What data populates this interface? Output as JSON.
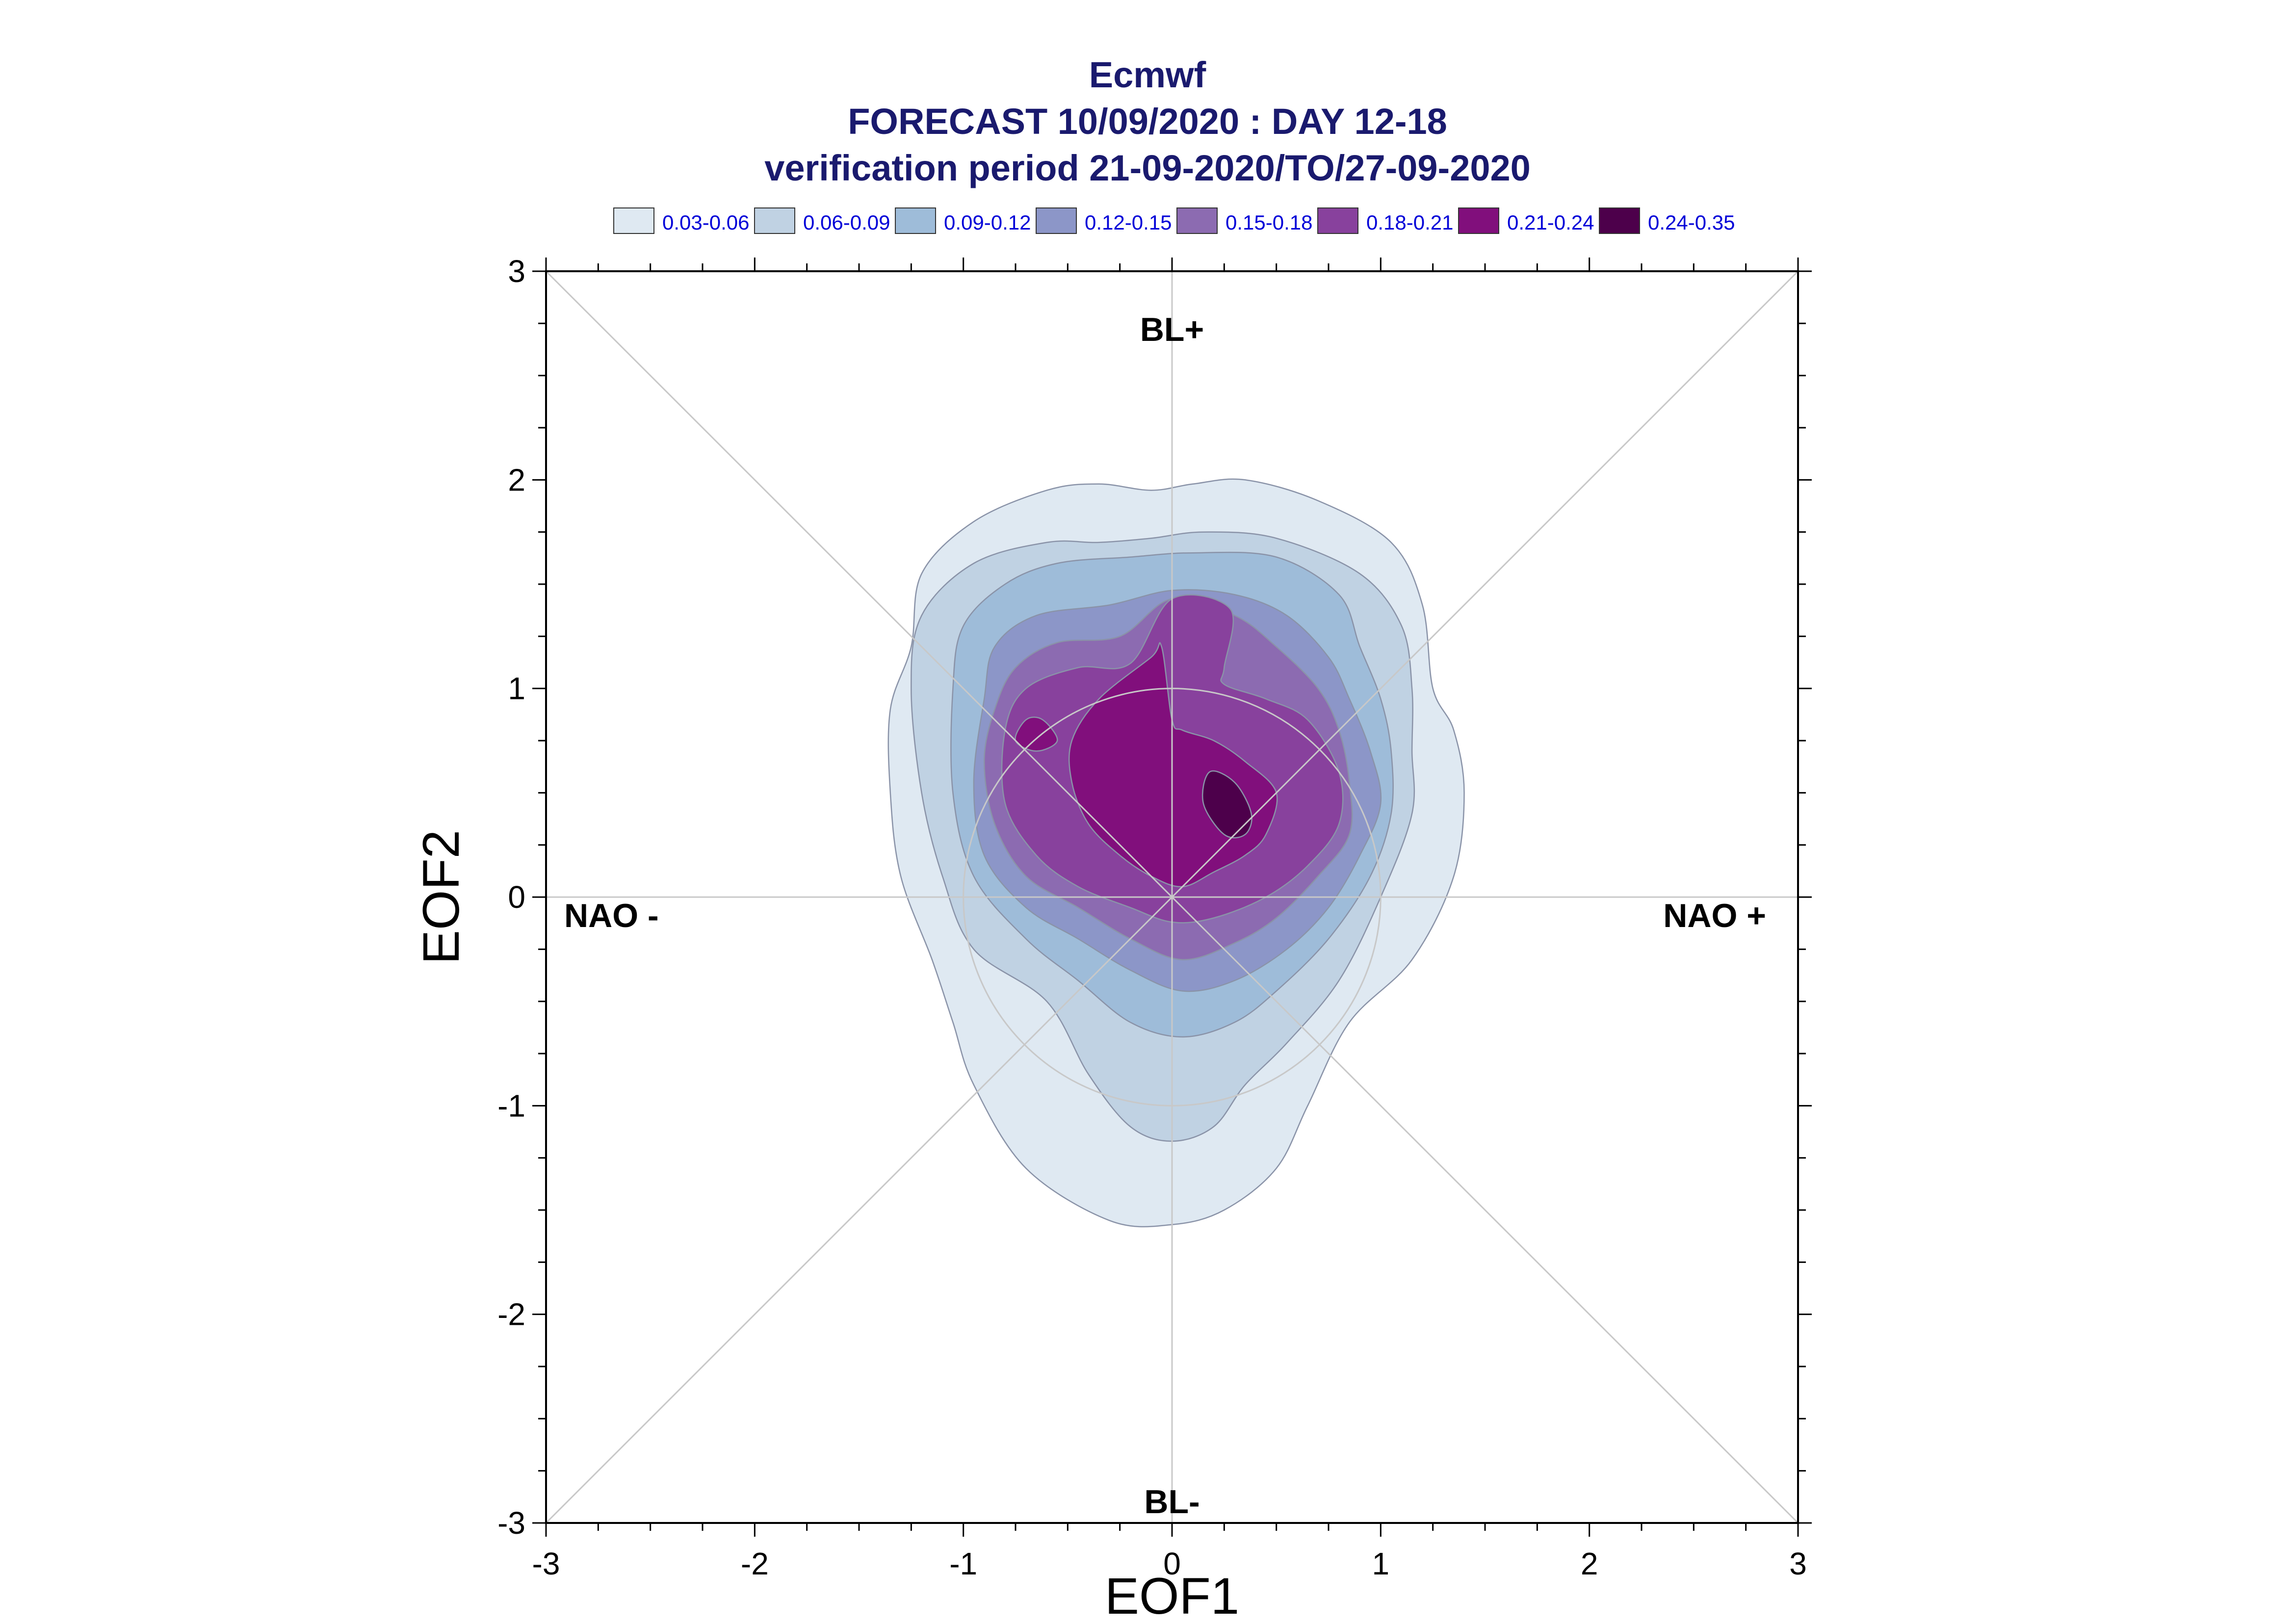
{
  "header": {
    "title": "Ecmwf",
    "subtitle": "FORECAST 10/09/2020 : DAY 12-18",
    "period": "verification period 21-09-2020/TO/27-09-2020"
  },
  "legend": [
    {
      "label": "0.03-0.06",
      "color": "#dfe9f2"
    },
    {
      "label": "0.06-0.09",
      "color": "#c0d2e3"
    },
    {
      "label": "0.09-0.12",
      "color": "#9ebcd9"
    },
    {
      "label": "0.12-0.15",
      "color": "#8c96c8"
    },
    {
      "label": "0.15-0.18",
      "color": "#8c6bb1"
    },
    {
      "label": "0.18-0.21",
      "color": "#88419d"
    },
    {
      "label": "0.21-0.24",
      "color": "#810f7c"
    },
    {
      "label": "0.24-0.35",
      "color": "#4d004b"
    }
  ],
  "chart_data": {
    "type": "contour",
    "xlabel": "EOF1",
    "ylabel": "EOF2",
    "xlim": [
      -3,
      3
    ],
    "ylim": [
      -3,
      3
    ],
    "xticks": [
      "-3",
      "-2",
      "-1",
      "0",
      "1",
      "2",
      "3"
    ],
    "yticks": [
      "3",
      "2",
      "1",
      "0",
      "-1",
      "-2",
      "-3"
    ],
    "regime_labels": {
      "top": "BL+",
      "bottom": "BL-",
      "left": "NAO -",
      "right": "NAO +"
    },
    "reference_circle_radius": 1,
    "levels": [
      {
        "range": "0.03-0.06",
        "points": [
          [
            -1.25,
            1.2
          ],
          [
            -1.2,
            1.55
          ],
          [
            -0.95,
            1.8
          ],
          [
            -0.6,
            1.95
          ],
          [
            -0.35,
            1.98
          ],
          [
            -0.1,
            1.95
          ],
          [
            0.1,
            1.98
          ],
          [
            0.35,
            2.0
          ],
          [
            0.7,
            1.9
          ],
          [
            1.05,
            1.7
          ],
          [
            1.2,
            1.4
          ],
          [
            1.25,
            1.0
          ],
          [
            1.35,
            0.8
          ],
          [
            1.4,
            0.5
          ],
          [
            1.35,
            0.1
          ],
          [
            1.15,
            -0.3
          ],
          [
            0.85,
            -0.6
          ],
          [
            0.65,
            -1.0
          ],
          [
            0.5,
            -1.3
          ],
          [
            0.25,
            -1.5
          ],
          [
            0.0,
            -1.57
          ],
          [
            -0.3,
            -1.55
          ],
          [
            -0.7,
            -1.3
          ],
          [
            -0.95,
            -0.9
          ],
          [
            -1.05,
            -0.6
          ],
          [
            -1.15,
            -0.3
          ],
          [
            -1.3,
            0.1
          ],
          [
            -1.35,
            0.5
          ],
          [
            -1.35,
            0.9
          ]
        ]
      },
      {
        "range": "0.06-0.09",
        "points": [
          [
            -1.25,
            1.0
          ],
          [
            -1.2,
            1.35
          ],
          [
            -0.95,
            1.6
          ],
          [
            -0.6,
            1.7
          ],
          [
            -0.35,
            1.7
          ],
          [
            -0.1,
            1.72
          ],
          [
            0.15,
            1.75
          ],
          [
            0.5,
            1.72
          ],
          [
            0.9,
            1.55
          ],
          [
            1.1,
            1.3
          ],
          [
            1.15,
            1.0
          ],
          [
            1.15,
            0.7
          ],
          [
            1.15,
            0.4
          ],
          [
            1.0,
            0.0
          ],
          [
            0.8,
            -0.4
          ],
          [
            0.55,
            -0.7
          ],
          [
            0.35,
            -0.9
          ],
          [
            0.2,
            -1.1
          ],
          [
            0.0,
            -1.17
          ],
          [
            -0.2,
            -1.1
          ],
          [
            -0.4,
            -0.85
          ],
          [
            -0.6,
            -0.5
          ],
          [
            -0.95,
            -0.25
          ],
          [
            -1.1,
            0.1
          ],
          [
            -1.2,
            0.5
          ]
        ]
      },
      {
        "range": "0.09-0.12",
        "points": [
          [
            -1.05,
            1.0
          ],
          [
            -1.0,
            1.3
          ],
          [
            -0.8,
            1.5
          ],
          [
            -0.55,
            1.6
          ],
          [
            -0.2,
            1.63
          ],
          [
            0.1,
            1.65
          ],
          [
            0.5,
            1.63
          ],
          [
            0.8,
            1.45
          ],
          [
            0.9,
            1.2
          ],
          [
            1.0,
            0.95
          ],
          [
            1.05,
            0.7
          ],
          [
            1.05,
            0.4
          ],
          [
            0.95,
            0.1
          ],
          [
            0.75,
            -0.2
          ],
          [
            0.5,
            -0.45
          ],
          [
            0.3,
            -0.6
          ],
          [
            0.05,
            -0.67
          ],
          [
            -0.2,
            -0.6
          ],
          [
            -0.45,
            -0.4
          ],
          [
            -0.7,
            -0.2
          ],
          [
            -0.95,
            0.1
          ],
          [
            -1.05,
            0.5
          ]
        ]
      },
      {
        "range": "0.12-0.15",
        "points": [
          [
            -0.9,
            0.95
          ],
          [
            -0.85,
            1.2
          ],
          [
            -0.65,
            1.35
          ],
          [
            -0.3,
            1.4
          ],
          [
            0.0,
            1.47
          ],
          [
            0.3,
            1.45
          ],
          [
            0.55,
            1.35
          ],
          [
            0.75,
            1.15
          ],
          [
            0.85,
            0.95
          ],
          [
            0.95,
            0.7
          ],
          [
            1.0,
            0.45
          ],
          [
            0.9,
            0.2
          ],
          [
            0.75,
            -0.05
          ],
          [
            0.55,
            -0.25
          ],
          [
            0.3,
            -0.4
          ],
          [
            0.05,
            -0.45
          ],
          [
            -0.2,
            -0.35
          ],
          [
            -0.45,
            -0.2
          ],
          [
            -0.7,
            -0.05
          ],
          [
            -0.9,
            0.2
          ],
          [
            -0.95,
            0.55
          ]
        ]
      },
      {
        "range": "0.15-0.18",
        "points": [
          [
            -0.85,
            0.9
          ],
          [
            -0.75,
            1.1
          ],
          [
            -0.55,
            1.22
          ],
          [
            -0.25,
            1.25
          ],
          [
            0.0,
            1.43
          ],
          [
            0.3,
            1.35
          ],
          [
            0.5,
            1.2
          ],
          [
            0.7,
            1.0
          ],
          [
            0.8,
            0.8
          ],
          [
            0.85,
            0.55
          ],
          [
            0.85,
            0.3
          ],
          [
            0.7,
            0.1
          ],
          [
            0.5,
            -0.1
          ],
          [
            0.3,
            -0.22
          ],
          [
            0.05,
            -0.3
          ],
          [
            -0.2,
            -0.2
          ],
          [
            -0.45,
            -0.05
          ],
          [
            -0.7,
            0.1
          ],
          [
            -0.85,
            0.35
          ],
          [
            -0.9,
            0.65
          ]
        ]
      },
      {
        "range": "0.18-0.21",
        "points": [
          [
            -0.8,
            0.8
          ],
          [
            -0.7,
            1.0
          ],
          [
            -0.45,
            1.1
          ],
          [
            -0.2,
            1.12
          ],
          [
            0.0,
            1.43
          ],
          [
            0.28,
            1.38
          ],
          [
            0.25,
            1.1
          ],
          [
            0.25,
            1.02
          ],
          [
            0.45,
            0.95
          ],
          [
            0.65,
            0.85
          ],
          [
            0.8,
            0.6
          ],
          [
            0.8,
            0.35
          ],
          [
            0.65,
            0.15
          ],
          [
            0.45,
            0.0
          ],
          [
            0.2,
            -0.1
          ],
          [
            0.0,
            -0.12
          ],
          [
            -0.2,
            -0.05
          ],
          [
            -0.45,
            0.05
          ],
          [
            -0.65,
            0.2
          ],
          [
            -0.8,
            0.45
          ]
        ]
      },
      {
        "range": "0.21-0.24",
        "points": [
          [
            -0.48,
            0.75
          ],
          [
            -0.35,
            0.95
          ],
          [
            -0.1,
            1.15
          ],
          [
            -0.05,
            1.2
          ],
          [
            0.0,
            0.85
          ],
          [
            0.05,
            0.8
          ],
          [
            0.2,
            0.75
          ],
          [
            0.35,
            0.65
          ],
          [
            0.5,
            0.5
          ],
          [
            0.45,
            0.3
          ],
          [
            0.35,
            0.2
          ],
          [
            0.2,
            0.12
          ],
          [
            0.05,
            0.05
          ],
          [
            -0.1,
            0.1
          ],
          [
            -0.25,
            0.2
          ],
          [
            -0.4,
            0.35
          ],
          [
            -0.48,
            0.55
          ]
        ]
      },
      {
        "range": "0.21-0.24",
        "points": [
          [
            -0.7,
            0.85
          ],
          [
            -0.62,
            0.85
          ],
          [
            -0.55,
            0.75
          ],
          [
            -0.65,
            0.7
          ],
          [
            -0.75,
            0.75
          ]
        ]
      },
      {
        "range": "0.24-0.35",
        "points": [
          [
            0.18,
            0.6
          ],
          [
            0.3,
            0.55
          ],
          [
            0.38,
            0.4
          ],
          [
            0.35,
            0.3
          ],
          [
            0.25,
            0.3
          ],
          [
            0.15,
            0.45
          ]
        ]
      }
    ]
  }
}
